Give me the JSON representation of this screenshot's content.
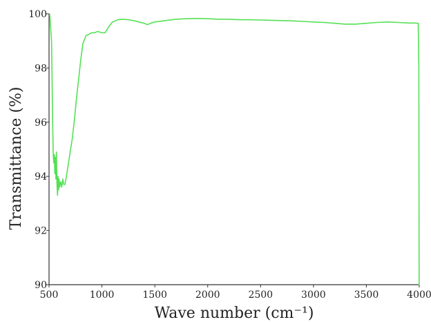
{
  "chart_data": {
    "type": "line",
    "xlabel": "Wave number (cm⁻¹)",
    "ylabel": "Transmittance (%)",
    "xlim": [
      500,
      4000
    ],
    "ylim": [
      90,
      100
    ],
    "x_ticks": [
      500,
      1000,
      1500,
      2000,
      2500,
      3000,
      3500,
      4000
    ],
    "y_ticks": [
      90,
      92,
      94,
      96,
      98,
      100
    ],
    "grid": false,
    "legend": "none",
    "series": [
      {
        "color": "#55e055",
        "x": [
          505,
          508,
          512,
          516,
          520,
          524,
          528,
          532,
          536,
          540,
          545,
          550,
          555,
          560,
          565,
          570,
          575,
          580,
          585,
          590,
          595,
          600,
          610,
          620,
          630,
          640,
          650,
          660,
          680,
          700,
          720,
          740,
          760,
          780,
          800,
          820,
          850,
          880,
          900,
          930,
          960,
          1000,
          1030,
          1060,
          1100,
          1150,
          1200,
          1250,
          1300,
          1350,
          1400,
          1430,
          1460,
          1500,
          1600,
          1700,
          1800,
          1900,
          2000,
          2100,
          2200,
          2300,
          2400,
          2500,
          2600,
          2700,
          2800,
          2900,
          3000,
          3100,
          3200,
          3300,
          3400,
          3500,
          3600,
          3700,
          3800,
          3900,
          3950,
          3990,
          3996,
          3999
        ],
        "y": [
          100.0,
          99.9,
          99.7,
          99.4,
          99.2,
          98.9,
          97.8,
          96.6,
          95.6,
          94.8,
          94.5,
          94.8,
          94.1,
          94.7,
          93.9,
          94.9,
          93.7,
          93.3,
          94.0,
          93.5,
          93.9,
          93.6,
          93.8,
          93.6,
          93.9,
          93.7,
          93.7,
          93.9,
          94.4,
          94.9,
          95.4,
          96.1,
          96.9,
          97.6,
          98.3,
          98.9,
          99.2,
          99.25,
          99.3,
          99.3,
          99.35,
          99.3,
          99.3,
          99.5,
          99.7,
          99.78,
          99.8,
          99.78,
          99.75,
          99.7,
          99.65,
          99.6,
          99.65,
          99.7,
          99.75,
          99.8,
          99.82,
          99.83,
          99.82,
          99.8,
          99.8,
          99.78,
          99.78,
          99.77,
          99.76,
          99.75,
          99.74,
          99.72,
          99.7,
          99.68,
          99.65,
          99.62,
          99.62,
          99.65,
          99.68,
          99.7,
          99.68,
          99.66,
          99.66,
          99.65,
          98.0,
          90.0
        ]
      }
    ]
  }
}
